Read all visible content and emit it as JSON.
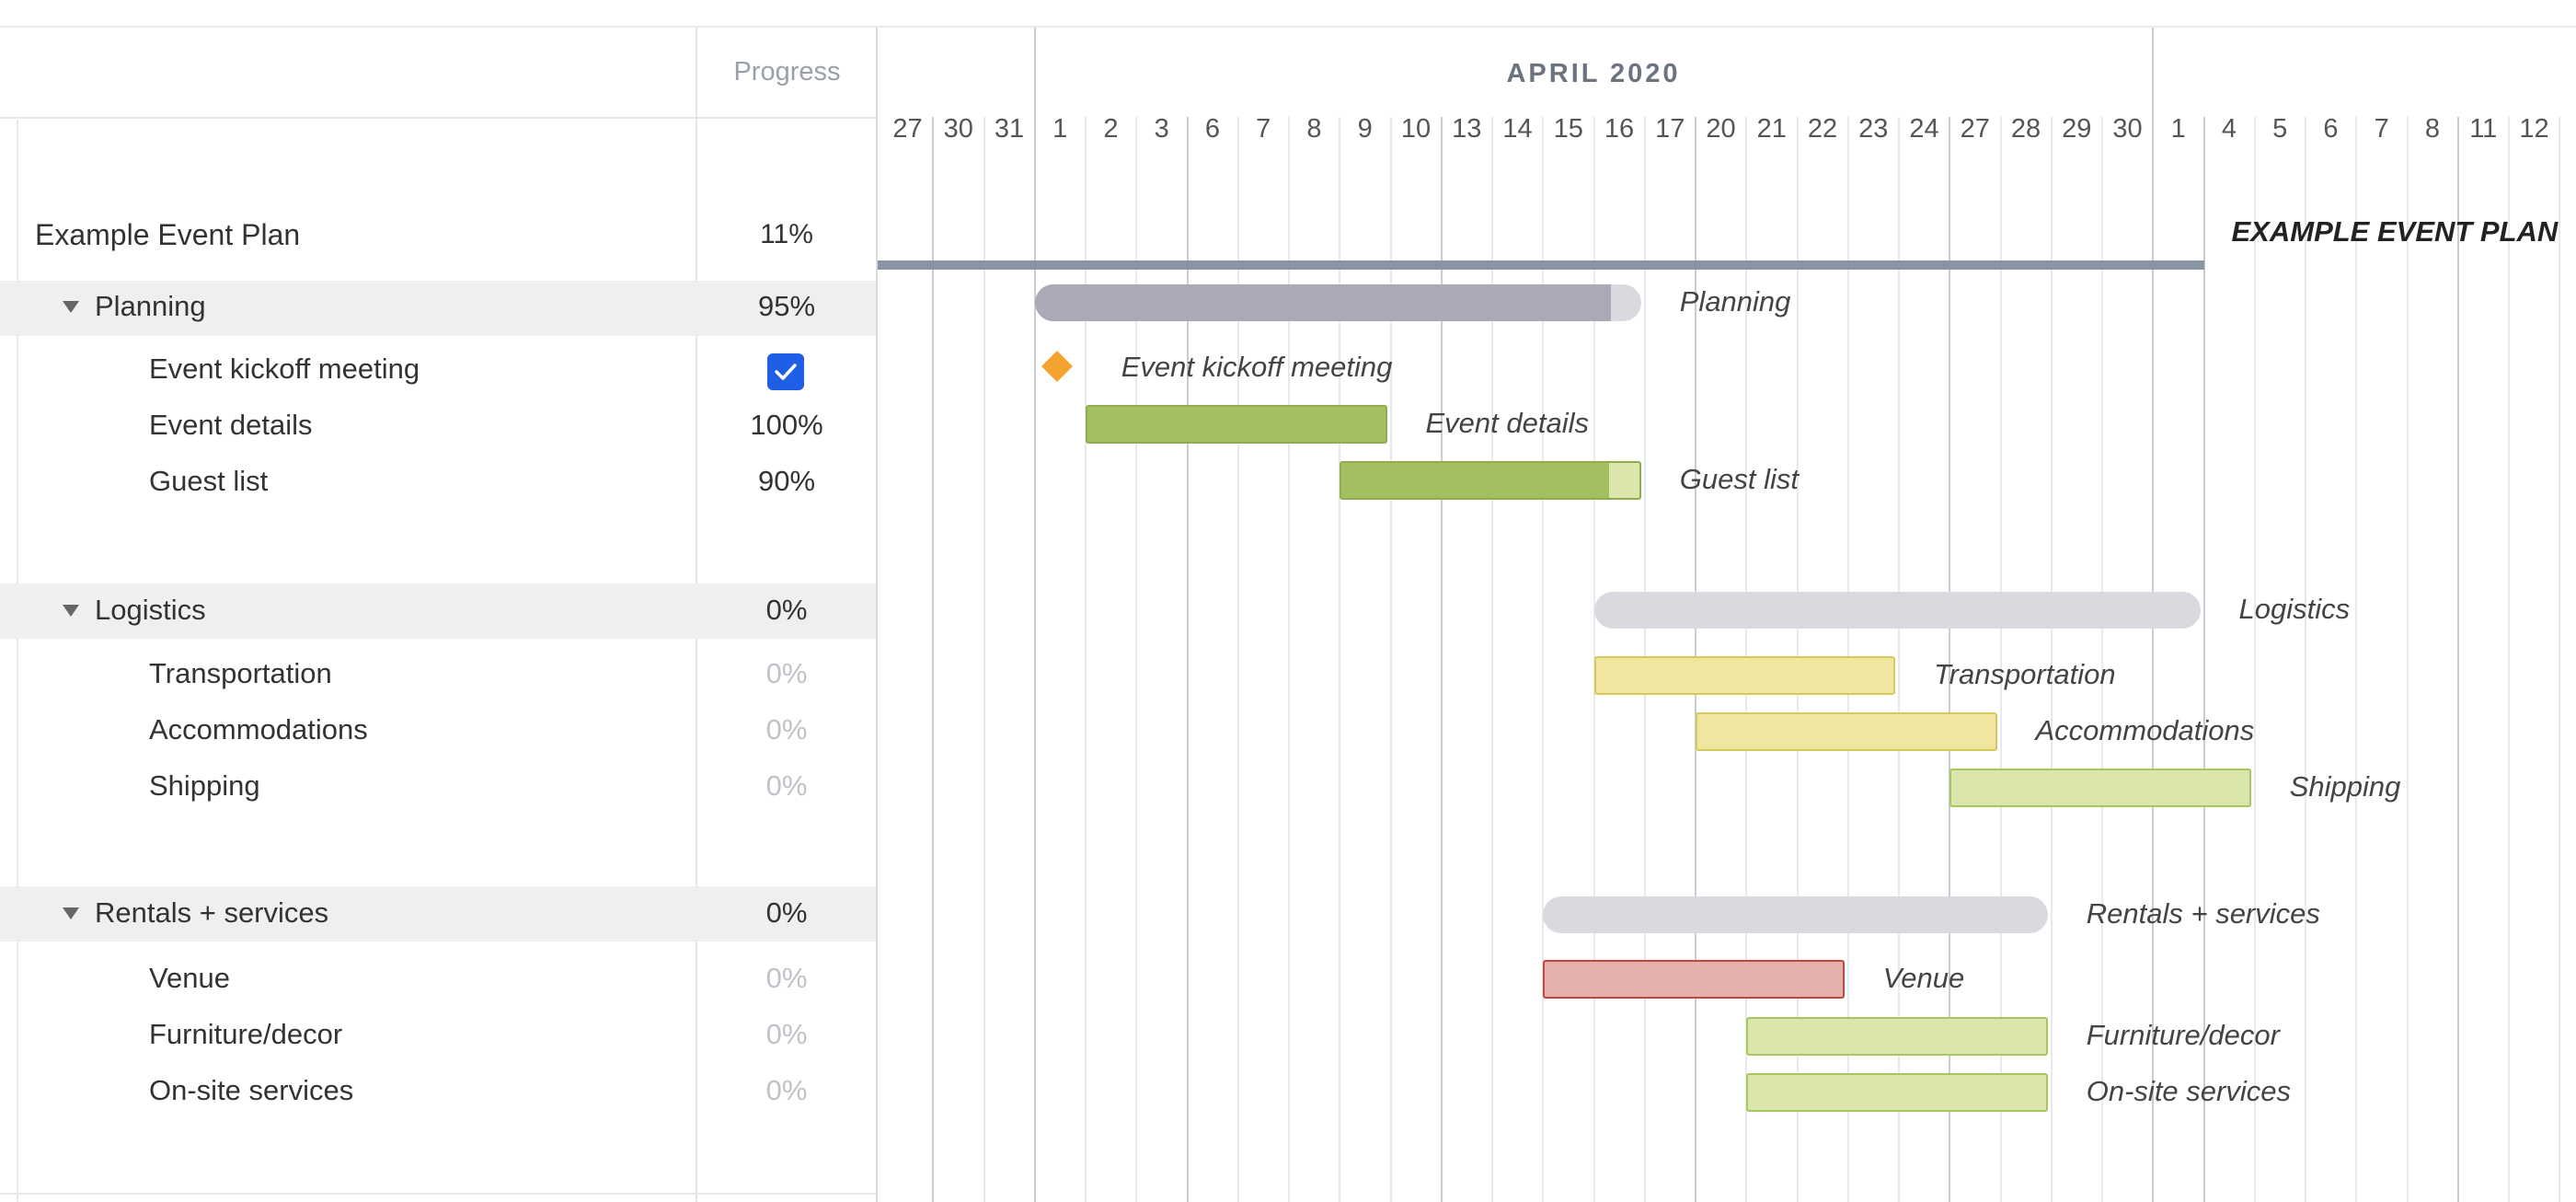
{
  "header": {
    "progress": "Progress",
    "month": "APRIL 2020"
  },
  "days": [
    "27",
    "30",
    "31",
    "1",
    "2",
    "3",
    "6",
    "7",
    "8",
    "9",
    "10",
    "13",
    "14",
    "15",
    "16",
    "17",
    "20",
    "21",
    "22",
    "23",
    "24",
    "27",
    "28",
    "29",
    "30",
    "1",
    "4",
    "5",
    "6",
    "7",
    "8",
    "11",
    "12"
  ],
  "project": {
    "name": "Example Event Plan",
    "progress": "11%",
    "chart_label": "EXAMPLE EVENT PLAN"
  },
  "groups": [
    {
      "name": "Planning",
      "progress": "95%",
      "tasks": [
        {
          "name": "Event kickoff meeting",
          "progress": "",
          "milestone": true,
          "done": true
        },
        {
          "name": "Event details",
          "progress": "100%"
        },
        {
          "name": "Guest list",
          "progress": "90%"
        }
      ]
    },
    {
      "name": "Logistics",
      "progress": "0%",
      "tasks": [
        {
          "name": "Transportation",
          "progress": "0%"
        },
        {
          "name": "Accommodations",
          "progress": "0%"
        },
        {
          "name": "Shipping",
          "progress": "0%"
        }
      ]
    },
    {
      "name": "Rentals + services",
      "progress": "0%",
      "tasks": [
        {
          "name": "Venue",
          "progress": "0%"
        },
        {
          "name": "Furniture/decor",
          "progress": "0%"
        },
        {
          "name": "On-site services",
          "progress": "0%"
        }
      ]
    }
  ],
  "bars": [
    {
      "label": "Planning",
      "start": 3,
      "end": 14,
      "progress": 0.95,
      "style": "summary-dark"
    },
    {
      "label": "Event kickoff meeting",
      "start": 3,
      "end": 3,
      "progress": 1,
      "style": "milestone"
    },
    {
      "label": "Event details",
      "start": 4,
      "end": 9,
      "progress": 1,
      "style": "green"
    },
    {
      "label": "Guest list",
      "start": 9,
      "end": 14,
      "progress": 0.9,
      "style": "green"
    },
    {
      "label": "Logistics",
      "start": 14,
      "end": 25,
      "progress": 0,
      "style": "summary-light"
    },
    {
      "label": "Transportation",
      "start": 14,
      "end": 19,
      "progress": 0,
      "style": "yellow"
    },
    {
      "label": "Accommodations",
      "start": 16,
      "end": 21,
      "progress": 0,
      "style": "yellow"
    },
    {
      "label": "Shipping",
      "start": 21,
      "end": 26,
      "progress": 0,
      "style": "light-green"
    },
    {
      "label": "Rentals + services",
      "start": 13,
      "end": 22,
      "progress": 0,
      "style": "summary-light"
    },
    {
      "label": "Venue",
      "start": 13,
      "end": 18,
      "progress": 0,
      "style": "red"
    },
    {
      "label": "Furniture/decor",
      "start": 17,
      "end": 22,
      "progress": 0,
      "style": "light-green"
    },
    {
      "label": "On-site services",
      "start": 17,
      "end": 22,
      "progress": 0,
      "style": "light-green"
    }
  ],
  "colors": {
    "summary-dark": "#a9a9b7",
    "summary-light": "#d9dae0",
    "green": "#a3c061",
    "green-border": "#8fae4b",
    "yellow": "#efe79f",
    "yellow-border": "#d6c95a",
    "light-green": "#dbe6ad",
    "light-green-border": "#a9c55e",
    "red": "#e4b2ad",
    "red-border": "#c8453c",
    "milestone": "#f5a32f",
    "project-line": "#8a95a3"
  }
}
